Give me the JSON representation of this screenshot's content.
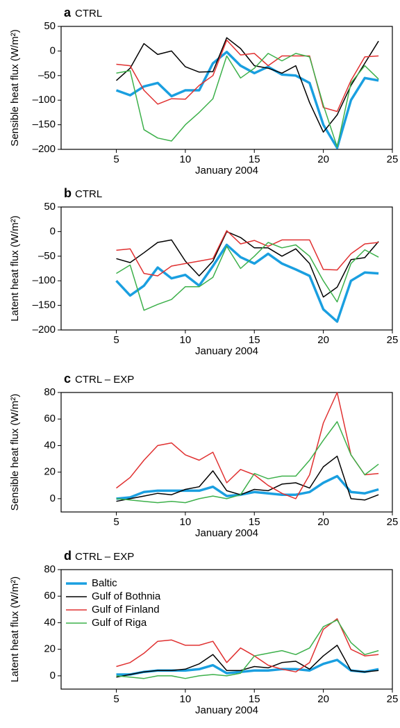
{
  "chart_data": [
    {
      "type": "line",
      "panel": "a",
      "title": "CTRL",
      "ylabel": "Sensible heat flux (W/m²)",
      "xlabel": "January 2004",
      "x": [
        5,
        6,
        7,
        8,
        9,
        10,
        11,
        12,
        13,
        14,
        15,
        16,
        17,
        18,
        19,
        20,
        21,
        22,
        23,
        24
      ],
      "xlim": [
        1,
        25
      ],
      "xticks": [
        5,
        10,
        15,
        20,
        25
      ],
      "ylim": [
        -200,
        50
      ],
      "yticks": [
        {
          "value": -200,
          "label": "–200"
        },
        {
          "value": -150,
          "label": "–150"
        },
        {
          "value": -100,
          "label": "–100"
        },
        {
          "value": -50,
          "label": "–50"
        },
        0,
        50
      ],
      "series": [
        {
          "color": "#1a9fe0",
          "line_width": 3.5,
          "values": [
            -80,
            -90,
            -72,
            -65,
            -92,
            -80,
            -80,
            -25,
            -2,
            -30,
            -45,
            -32,
            -48,
            -50,
            -65,
            -150,
            -197,
            -100,
            -55,
            -60
          ]
        },
        {
          "color": "#000000",
          "line_width": 1.5,
          "values": [
            -60,
            -35,
            15,
            -7,
            0,
            -32,
            -43,
            -42,
            27,
            5,
            -30,
            -35,
            -45,
            -30,
            -105,
            -165,
            -130,
            -70,
            -25,
            20
          ]
        },
        {
          "color": "#e03030",
          "line_width": 1.5,
          "values": [
            -27,
            -30,
            -80,
            -108,
            -97,
            -98,
            -70,
            -50,
            22,
            -8,
            -5,
            -30,
            -10,
            -10,
            -10,
            -115,
            -123,
            -60,
            -12,
            -10
          ]
        },
        {
          "color": "#3cb04a",
          "line_width": 1.5,
          "values": [
            -45,
            -40,
            -160,
            -177,
            -183,
            -150,
            -125,
            -97,
            -10,
            -55,
            -35,
            -5,
            -20,
            -5,
            -12,
            -110,
            -195,
            -65,
            -30,
            -57
          ]
        }
      ]
    },
    {
      "type": "line",
      "panel": "b",
      "title": "CTRL",
      "ylabel": "Latent heat flux (W/m²)",
      "xlabel": "January 2004",
      "x": [
        5,
        6,
        7,
        8,
        9,
        10,
        11,
        12,
        13,
        14,
        15,
        16,
        17,
        18,
        19,
        20,
        21,
        22,
        23,
        24
      ],
      "xlim": [
        1,
        25
      ],
      "xticks": [
        5,
        10,
        15,
        20,
        25
      ],
      "ylim": [
        -200,
        50
      ],
      "yticks": [
        {
          "value": -200,
          "label": "–200"
        },
        {
          "value": -150,
          "label": "–150"
        },
        {
          "value": -100,
          "label": "–100"
        },
        {
          "value": -50,
          "label": "–50"
        },
        0,
        50
      ],
      "series": [
        {
          "color": "#1a9fe0",
          "line_width": 3.5,
          "values": [
            -100,
            -130,
            -110,
            -73,
            -95,
            -88,
            -110,
            -70,
            -27,
            -52,
            -65,
            -45,
            -65,
            -77,
            -90,
            -158,
            -183,
            -100,
            -83,
            -85
          ]
        },
        {
          "color": "#000000",
          "line_width": 1.5,
          "values": [
            -55,
            -63,
            -43,
            -22,
            -17,
            -60,
            -90,
            -60,
            0,
            -12,
            -33,
            -33,
            -50,
            -35,
            -65,
            -133,
            -113,
            -57,
            -53,
            -20
          ]
        },
        {
          "color": "#e03030",
          "line_width": 1.5,
          "values": [
            -38,
            -35,
            -85,
            -90,
            -70,
            -65,
            -60,
            -55,
            2,
            -25,
            -18,
            -30,
            -17,
            -17,
            -17,
            -77,
            -78,
            -45,
            -25,
            -22
          ]
        },
        {
          "color": "#3cb04a",
          "line_width": 1.5,
          "values": [
            -85,
            -68,
            -160,
            -148,
            -138,
            -112,
            -112,
            -93,
            -30,
            -75,
            -50,
            -22,
            -33,
            -27,
            -50,
            -100,
            -143,
            -65,
            -37,
            -52
          ]
        }
      ]
    },
    {
      "type": "line",
      "panel": "c",
      "title": "CTRL – EXP",
      "ylabel": "Sensible heat flux (W/m²)",
      "xlabel": "January 2004",
      "x": [
        5,
        6,
        7,
        8,
        9,
        10,
        11,
        12,
        13,
        14,
        15,
        16,
        17,
        18,
        19,
        20,
        21,
        22,
        23,
        24
      ],
      "xlim": [
        1,
        25
      ],
      "xticks": [
        5,
        10,
        15,
        20,
        25
      ],
      "ylim": [
        -10,
        80
      ],
      "yticks": [
        0,
        20,
        40,
        60,
        80
      ],
      "series": [
        {
          "color": "#1a9fe0",
          "line_width": 3.5,
          "values": [
            0,
            1,
            5,
            6,
            6,
            6,
            6,
            9,
            2,
            3,
            5,
            4,
            3,
            3,
            5,
            12,
            17,
            5,
            4,
            7
          ]
        },
        {
          "color": "#000000",
          "line_width": 1.5,
          "values": [
            -2,
            0,
            2,
            4,
            3,
            7,
            9,
            21,
            6,
            3,
            7,
            6,
            11,
            12,
            8,
            24,
            32,
            0,
            -1,
            3
          ]
        },
        {
          "color": "#e03030",
          "line_width": 1.5,
          "values": [
            8,
            16,
            29,
            40,
            42,
            33,
            29,
            35,
            12,
            22,
            18,
            10,
            4,
            0,
            18,
            57,
            80,
            33,
            18,
            19
          ]
        },
        {
          "color": "#3cb04a",
          "line_width": 1.5,
          "values": [
            0,
            -1,
            -2,
            -3,
            -2,
            -3,
            0,
            2,
            0,
            3,
            19,
            15,
            17,
            17,
            29,
            44,
            58,
            33,
            18,
            26
          ]
        }
      ]
    },
    {
      "type": "line",
      "panel": "d",
      "title": "CTRL – EXP",
      "ylabel": "Latent heat flux (W/m²)",
      "xlabel": "January 2004",
      "x": [
        5,
        6,
        7,
        8,
        9,
        10,
        11,
        12,
        13,
        14,
        15,
        16,
        17,
        18,
        19,
        20,
        21,
        22,
        23,
        24
      ],
      "xlim": [
        1,
        25
      ],
      "xticks": [
        5,
        10,
        15,
        20,
        25
      ],
      "ylim": [
        -10,
        80
      ],
      "yticks": [
        0,
        20,
        40,
        60,
        80
      ],
      "legend": "upper left",
      "series": [
        {
          "name": "Baltic",
          "color": "#1a9fe0",
          "line_width": 3.5,
          "values": [
            1,
            1,
            3,
            4,
            4,
            4,
            5,
            8,
            2,
            3,
            4,
            4,
            5,
            5,
            4,
            9,
            12,
            4,
            3,
            5
          ]
        },
        {
          "name": "Gulf of Bothnia",
          "color": "#000000",
          "line_width": 1.5,
          "values": [
            -1,
            1,
            3,
            4,
            4,
            5,
            9,
            16,
            4,
            4,
            7,
            6,
            10,
            11,
            5,
            15,
            23,
            4,
            3,
            4
          ]
        },
        {
          "name": "Gulf of Finland",
          "color": "#e03030",
          "line_width": 1.5,
          "values": [
            7,
            10,
            17,
            26,
            27,
            23,
            23,
            26,
            10,
            21,
            15,
            8,
            5,
            3,
            10,
            35,
            43,
            20,
            15,
            16
          ]
        },
        {
          "name": "Gulf of Riga",
          "color": "#3cb04a",
          "line_width": 1.5,
          "values": [
            0,
            -1,
            -2,
            0,
            0,
            -2,
            0,
            1,
            0,
            2,
            15,
            17,
            19,
            16,
            21,
            37,
            42,
            25,
            16,
            19
          ]
        }
      ]
    }
  ]
}
